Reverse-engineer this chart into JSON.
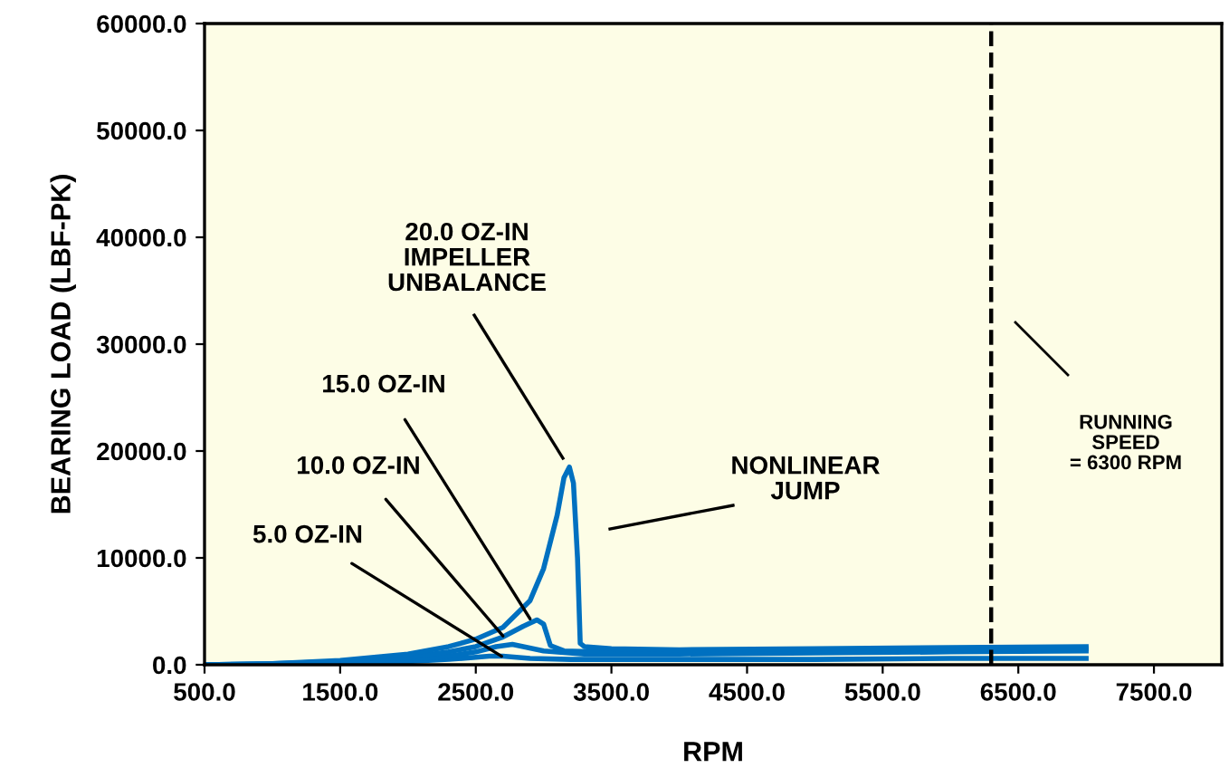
{
  "chart_data": {
    "type": "line",
    "xlabel": "RPM",
    "ylabel": "BEARING LOAD (LBF-PK)",
    "xlim": [
      500,
      8000
    ],
    "xticks": [
      {
        "value": 500,
        "label": "500.0"
      },
      {
        "value": 1500,
        "label": "1500.0"
      },
      {
        "value": 2500,
        "label": "2500.0"
      },
      {
        "value": 3500,
        "label": "3500.0"
      },
      {
        "value": 4500,
        "label": "4500.0"
      },
      {
        "value": 5500,
        "label": "5500.0"
      },
      {
        "value": 6500,
        "label": "6500.0"
      },
      {
        "value": 7500,
        "label": "7500.0"
      }
    ],
    "ylim": [
      0,
      60000
    ],
    "yticks": [
      {
        "value": 0,
        "label": "0.0"
      },
      {
        "value": 10000,
        "label": "10000.0"
      },
      {
        "value": 20000,
        "label": "20000.0"
      },
      {
        "value": 30000,
        "label": "30000.0"
      },
      {
        "value": 40000,
        "label": "40000.0"
      },
      {
        "value": 50000,
        "label": "50000.0"
      },
      {
        "value": 60000,
        "label": "60000.0"
      }
    ],
    "grid": false,
    "legend": false,
    "marker": "none",
    "line_style": "solid",
    "series": [
      {
        "color": "#0070c0",
        "x": [
          500,
          1000,
          1500,
          2000,
          2300,
          2500,
          2600,
          2700,
          2900,
          3200,
          4000,
          5000,
          6000,
          7000
        ],
        "values": [
          0,
          0,
          200,
          300,
          500,
          700,
          800,
          800,
          600,
          500,
          500,
          500,
          600,
          600
        ]
      },
      {
        "color": "#0070c0",
        "x": [
          500,
          1000,
          1500,
          2000,
          2300,
          2500,
          2650,
          2770,
          2850,
          3000,
          3300,
          4000,
          5000,
          6000,
          7000
        ],
        "values": [
          0,
          0,
          200,
          500,
          800,
          1200,
          1700,
          1900,
          1700,
          1300,
          1000,
          1000,
          1100,
          1200,
          1300
        ]
      },
      {
        "color": "#0070c0",
        "x": [
          500,
          1000,
          1500,
          2000,
          2300,
          2500,
          2700,
          2850,
          2950,
          3000,
          3050,
          3150,
          3400,
          4000,
          5000,
          6000,
          7000
        ],
        "values": [
          0,
          100,
          300,
          700,
          1200,
          1700,
          2600,
          3600,
          4200,
          3800,
          1800,
          1300,
          1200,
          1200,
          1300,
          1400,
          1500
        ]
      },
      {
        "color": "#0070c0",
        "x": [
          500,
          1000,
          1500,
          2000,
          2300,
          2500,
          2700,
          2900,
          3000,
          3100,
          3150,
          3190,
          3220,
          3250,
          3270,
          3300,
          3500,
          4000,
          5000,
          6000,
          7000
        ],
        "values": [
          0,
          100,
          400,
          1000,
          1700,
          2400,
          3500,
          6000,
          9000,
          14000,
          17500,
          18500,
          17000,
          10000,
          2000,
          1700,
          1500,
          1400,
          1500,
          1600,
          1700
        ]
      }
    ],
    "ref_lines": [
      {
        "axis": "x",
        "value": 6300,
        "label": "RUNNING\nSPEED\n= 6300 RPM",
        "color": "#000000",
        "line_style": "dashed"
      }
    ],
    "annotations": [
      "20.0 OZ-IN\nIMPELLER\nUNBALANCE",
      {
        "text": "15.0 OZ-IN",
        "x": 2900,
        "y": 4300
      },
      {
        "text": "10.0 OZ-IN",
        "x": 2700,
        "y": 2700
      },
      {
        "text": "5.0 OZ-IN",
        "x": 2690,
        "y": 800
      },
      "NONLINEAR\nJUMP"
    ]
  }
}
